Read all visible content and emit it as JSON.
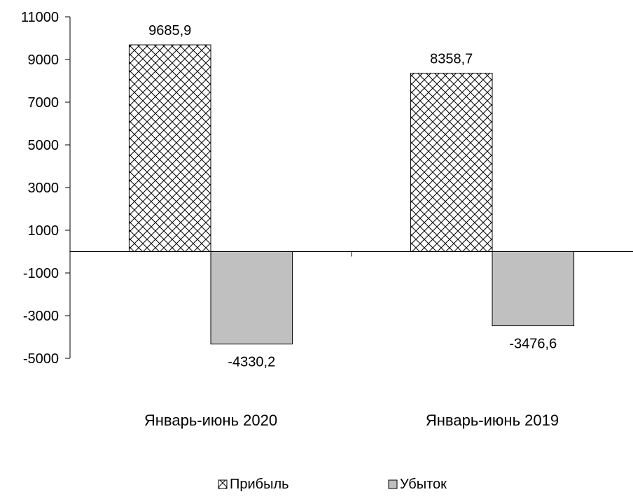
{
  "chart_data": {
    "type": "bar",
    "categories": [
      "Январь-июнь 2020",
      "Январь-июнь 2019"
    ],
    "series": [
      {
        "name": "Прибыль",
        "values": [
          9685.9,
          8358.7
        ],
        "labels": [
          "9685,9",
          "8358,7"
        ],
        "fill": "crosshatch"
      },
      {
        "name": "Убыток",
        "values": [
          -4330.2,
          -3476.6
        ],
        "labels": [
          "-4330,2",
          "-3476,6"
        ],
        "fill": "#c0c0c0"
      }
    ],
    "yticks": [
      11000,
      9000,
      7000,
      5000,
      3000,
      1000,
      -1000,
      -3000,
      -5000
    ],
    "ytick_labels": [
      "11000",
      "9000",
      "7000",
      "5000",
      "3000",
      "1000",
      "-1000",
      "-3000",
      "-5000"
    ],
    "ylim": [
      -5000,
      11000
    ],
    "legend_position": "bottom",
    "grid": false
  }
}
